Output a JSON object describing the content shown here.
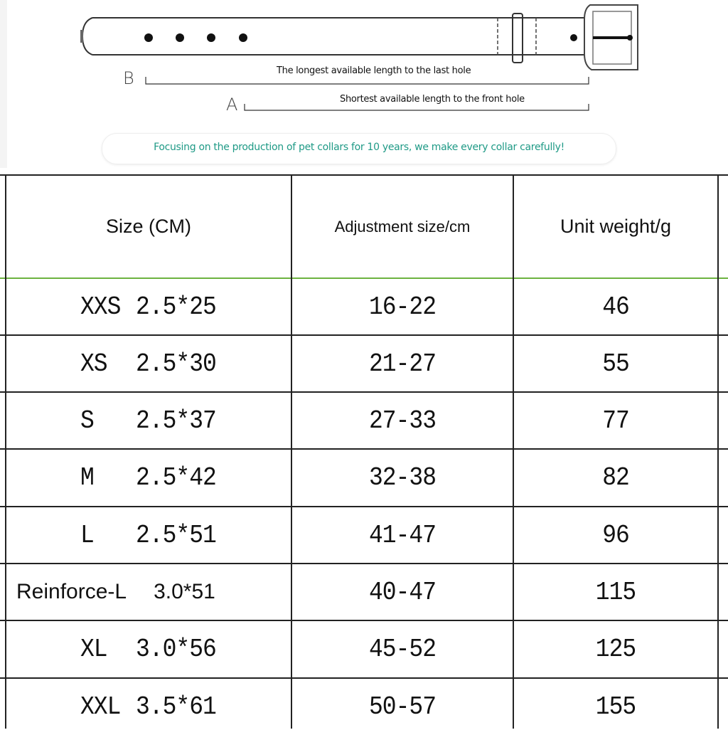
{
  "diagram": {
    "label_b": "B",
    "label_a": "A",
    "longest_text": "The longest available length to the last hole",
    "shortest_text": "Shortest available length to the front hole",
    "slogan": "Focusing on the production of pet collars for 10 years, we make every collar carefully!",
    "slogan_color": "#1f9a86"
  },
  "table": {
    "headers": [
      "Size (CM)",
      "Adjustment size/cm",
      "Unit weight/g"
    ],
    "header_divider_color": "#6cb33f",
    "rows": [
      {
        "size": "XXS",
        "dims": "2.5*25",
        "adjust": "16-22",
        "weight": "46"
      },
      {
        "size": "XS",
        "dims": "2.5*30",
        "adjust": "21-27",
        "weight": "55"
      },
      {
        "size": "S",
        "dims": "2.5*37",
        "adjust": "27-33",
        "weight": "77"
      },
      {
        "size": "M",
        "dims": "2.5*42",
        "adjust": "32-38",
        "weight": "82"
      },
      {
        "size": "L",
        "dims": "2.5*51",
        "adjust": "41-47",
        "weight": "96"
      },
      {
        "size": "Reinforce-L",
        "dims": "3.0*51",
        "adjust": "40-47",
        "weight": "115"
      },
      {
        "size": "XL",
        "dims": "3.0*56",
        "adjust": "45-52",
        "weight": "125"
      },
      {
        "size": "XXL",
        "dims": "3.5*61",
        "adjust": "50-57",
        "weight": "155"
      }
    ]
  }
}
